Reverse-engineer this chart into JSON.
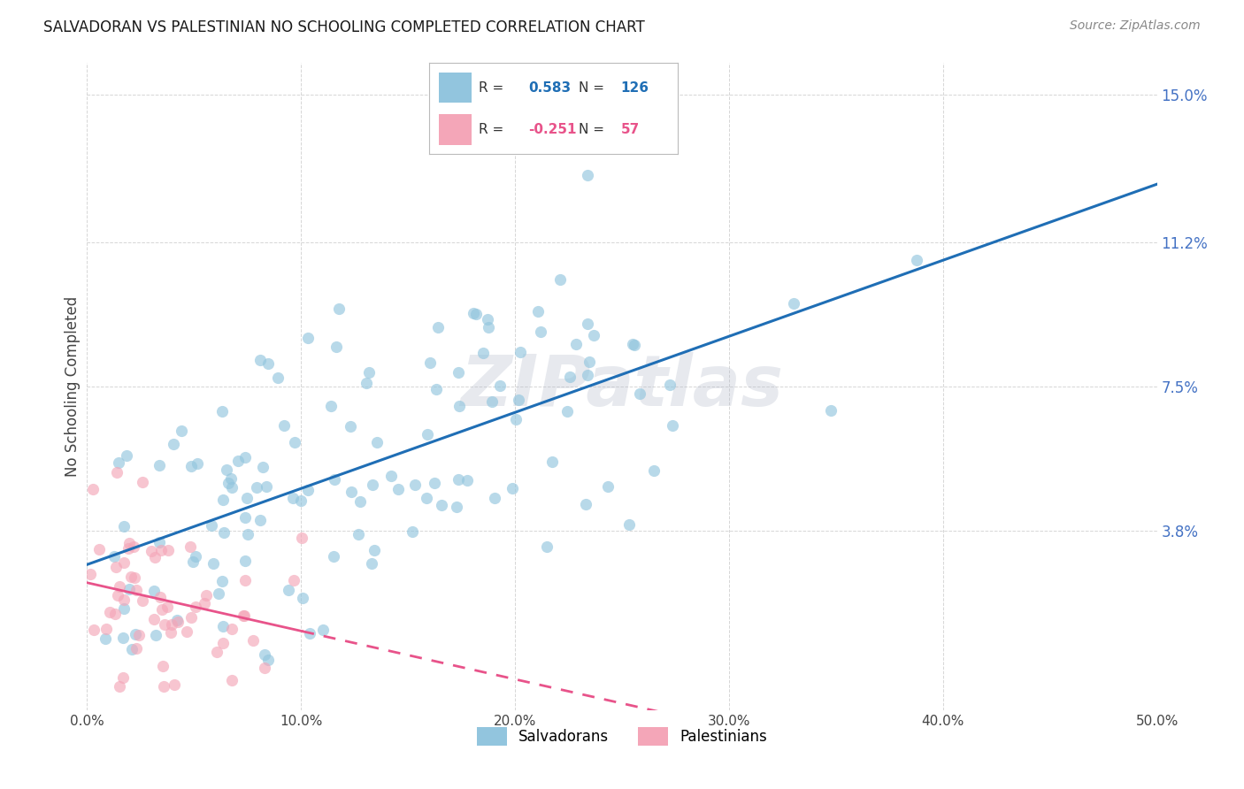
{
  "title": "SALVADORAN VS PALESTINIAN NO SCHOOLING COMPLETED CORRELATION CHART",
  "source": "Source: ZipAtlas.com",
  "ylabel": "No Schooling Completed",
  "xlabel_ticks": [
    "0.0%",
    "10.0%",
    "20.0%",
    "30.0%",
    "40.0%",
    "50.0%"
  ],
  "ylabel_ticks": [
    "3.8%",
    "7.5%",
    "11.2%",
    "15.0%"
  ],
  "ytick_vals": [
    0.038,
    0.075,
    0.112,
    0.15
  ],
  "xtick_vals": [
    0.0,
    0.1,
    0.2,
    0.3,
    0.4,
    0.5
  ],
  "xlim": [
    0.0,
    0.5
  ],
  "ylim": [
    -0.008,
    0.158
  ],
  "salvadoran_R": 0.583,
  "salvadoran_N": 126,
  "palestinian_R": -0.251,
  "palestinian_N": 57,
  "scatter_blue": "#92c5de",
  "scatter_pink": "#f4a6b8",
  "line_blue": "#1f6eb5",
  "line_pink": "#e8538a",
  "bg_color": "#ffffff",
  "grid_color": "#cccccc",
  "watermark": "ZIPatlas",
  "watermark_color": "#b0b8c8",
  "title_fontsize": 12,
  "source_fontsize": 10,
  "axis_label_color": "#555555",
  "tick_color_right": "#4472c4",
  "legend_box_color": "#aaaaaa"
}
